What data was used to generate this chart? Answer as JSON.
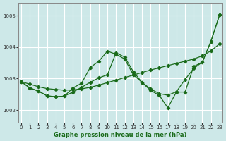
{
  "xlabel": "Graphe pression niveau de la mer (hPa)",
  "background_color": "#cde8e8",
  "line_color": "#1a6b1a",
  "grid_color": "#ffffff",
  "ylim": [
    1001.6,
    1005.4
  ],
  "xlim": [
    -0.3,
    23.3
  ],
  "yticks": [
    1002,
    1003,
    1004,
    1005
  ],
  "xticks": [
    0,
    1,
    2,
    3,
    4,
    5,
    6,
    7,
    8,
    9,
    10,
    11,
    12,
    13,
    14,
    15,
    16,
    17,
    18,
    19,
    20,
    21,
    22,
    23
  ],
  "series": [
    {
      "x": [
        0,
        1,
        2,
        3,
        4,
        5,
        6,
        7,
        8,
        9,
        10,
        11,
        12,
        13,
        14,
        15,
        16,
        17,
        18,
        19,
        20,
        21,
        22,
        23
      ],
      "y": [
        1002.9,
        1002.82,
        1002.74,
        1002.68,
        1002.65,
        1002.63,
        1002.64,
        1002.67,
        1002.72,
        1002.79,
        1002.87,
        1002.95,
        1003.03,
        1003.11,
        1003.19,
        1003.27,
        1003.34,
        1003.41,
        1003.48,
        1003.55,
        1003.62,
        1003.72,
        1003.88,
        1004.1
      ]
    },
    {
      "x": [
        0,
        1,
        2,
        3,
        4,
        5,
        6,
        7,
        8,
        9,
        10,
        11,
        12,
        13,
        14,
        15,
        16,
        17,
        18,
        19,
        20,
        21,
        22,
        23
      ],
      "y": [
        1002.9,
        1002.7,
        1002.6,
        1002.45,
        1002.42,
        1002.44,
        1002.7,
        1002.85,
        1003.35,
        1003.55,
        1003.87,
        1003.77,
        1003.62,
        1003.12,
        1002.88,
        1002.67,
        1002.52,
        1002.47,
        1002.58,
        1002.97,
        1003.32,
        1003.52,
        1004.18,
        1005.02
      ]
    },
    {
      "x": [
        0,
        1,
        2,
        3,
        4,
        5,
        6,
        7,
        8,
        9,
        10,
        11,
        12,
        13,
        14,
        15,
        16,
        17,
        18,
        19,
        20,
        21,
        22,
        23
      ],
      "y": [
        1002.9,
        1002.7,
        1002.6,
        1002.45,
        1002.42,
        1002.44,
        1002.57,
        1002.72,
        1002.88,
        1003.02,
        1003.12,
        1003.82,
        1003.68,
        1003.22,
        1002.88,
        1002.62,
        1002.47,
        1002.07,
        1002.57,
        1002.57,
        1003.38,
        1003.52,
        1004.18,
        1005.02
      ]
    }
  ]
}
